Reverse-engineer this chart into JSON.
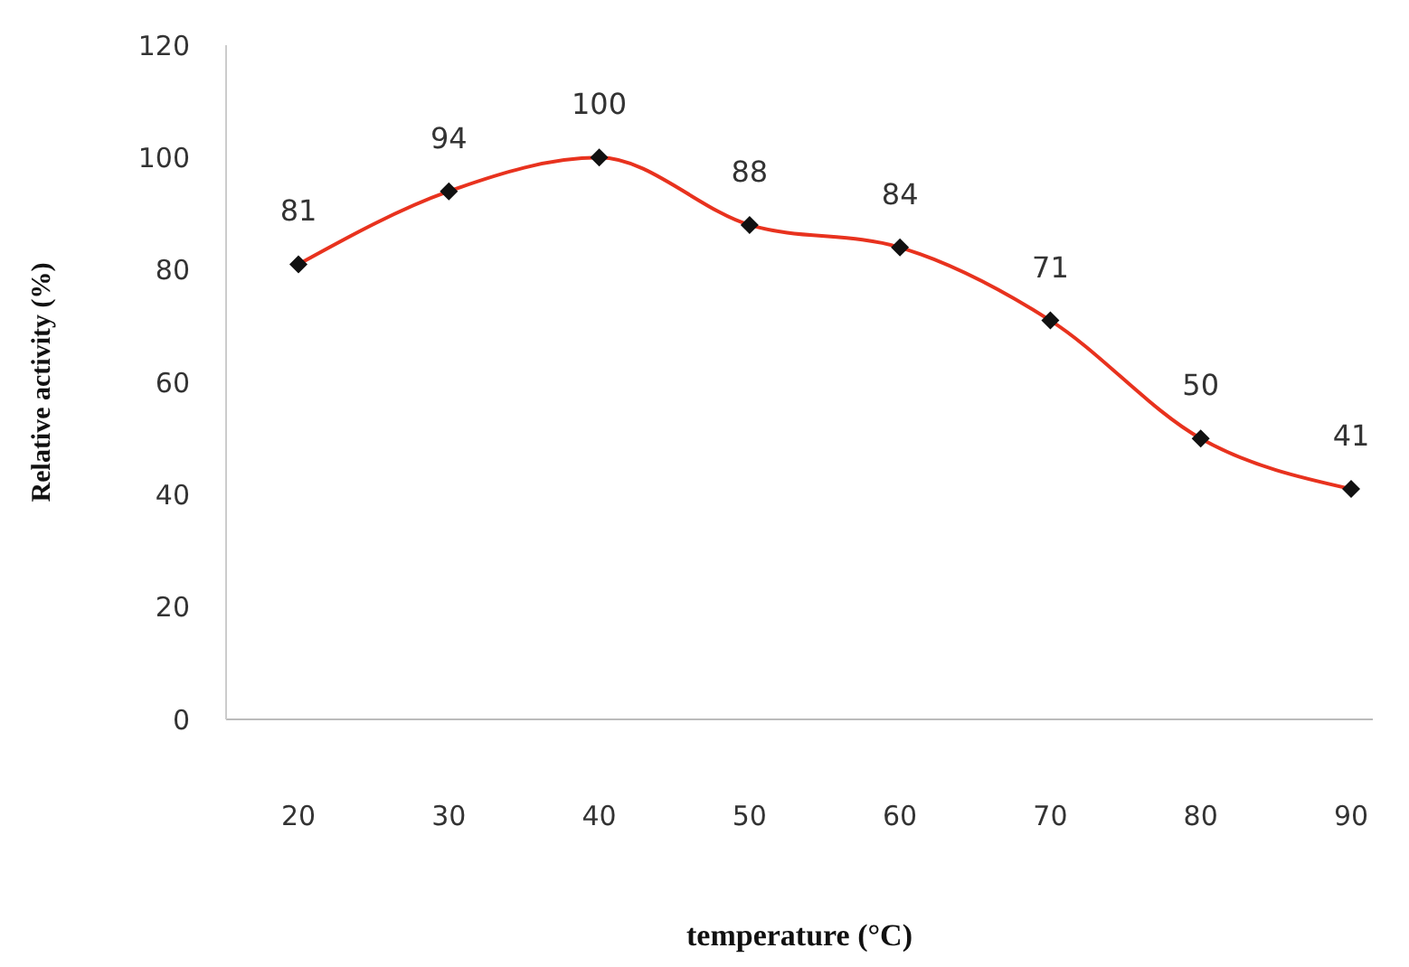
{
  "chart_data": {
    "type": "line",
    "xlabel": "temperature  (°C)",
    "ylabel": "Relative activity (%)",
    "categories": [
      "20",
      "30",
      "40",
      "50",
      "60",
      "70",
      "80",
      "90"
    ],
    "series": [
      {
        "color": "#e8321e",
        "values": [
          81,
          94,
          100,
          88,
          84,
          71,
          50,
          41
        ]
      }
    ],
    "ylim": [
      0,
      120
    ],
    "yticks": [
      0,
      20,
      40,
      60,
      80,
      100,
      120
    ],
    "grid": false,
    "legend": false,
    "marker": "diamond",
    "line_style": "solid",
    "data_labels": true
  }
}
